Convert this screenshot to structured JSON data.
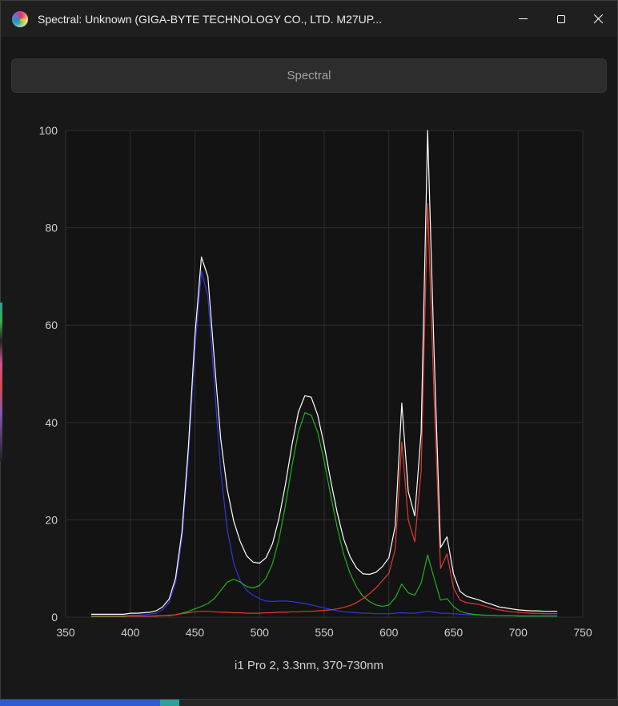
{
  "window": {
    "title": "Spectral: Unknown (GIGA-BYTE TECHNOLOGY CO., LTD. M27UP...",
    "controls": {
      "minimize": "minimize",
      "maximize": "maximize",
      "close": "close"
    }
  },
  "toolbar": {
    "spectral_label": "Spectral"
  },
  "caption": "i1 Pro 2, 3.3nm, 370-730nm",
  "colors": {
    "window_bg": "#181818",
    "titlebar_bg": "#1f1f1f",
    "plot_bg": "#131313",
    "grid": "#2f2f2f",
    "tick_text": "#cfcfcf",
    "white_series": "#ffffff",
    "red_series": "#e03c30",
    "green_series": "#1db31d",
    "blue_series": "#3434e0"
  },
  "chart_data": {
    "type": "line",
    "title": "Spectral",
    "xlabel": "",
    "ylabel": "",
    "xlim": [
      350,
      750
    ],
    "ylim": [
      0,
      100
    ],
    "x_ticks": [
      350,
      400,
      450,
      500,
      550,
      600,
      650,
      700,
      750
    ],
    "y_ticks": [
      0,
      20,
      40,
      60,
      80,
      100
    ],
    "grid": true,
    "legend": "none",
    "x": [
      370,
      375,
      380,
      385,
      390,
      395,
      400,
      405,
      410,
      415,
      420,
      425,
      430,
      435,
      440,
      445,
      450,
      455,
      460,
      465,
      470,
      475,
      480,
      485,
      490,
      495,
      500,
      505,
      510,
      515,
      520,
      525,
      530,
      535,
      540,
      545,
      550,
      555,
      560,
      565,
      570,
      575,
      580,
      585,
      590,
      595,
      600,
      605,
      610,
      615,
      620,
      625,
      630,
      635,
      640,
      645,
      650,
      655,
      660,
      665,
      670,
      675,
      680,
      685,
      690,
      695,
      700,
      705,
      710,
      715,
      720,
      725,
      730
    ],
    "series": [
      {
        "name": "white",
        "color": "#ffffff",
        "values": [
          0.6,
          0.6,
          0.6,
          0.6,
          0.6,
          0.6,
          0.8,
          0.8,
          0.9,
          1.0,
          1.3,
          2.1,
          3.7,
          8.0,
          17.5,
          35.1,
          57.8,
          74.0,
          70.0,
          52.9,
          36.5,
          26.2,
          19.7,
          15.6,
          12.6,
          11.3,
          11.1,
          12.2,
          15.1,
          20.3,
          27.3,
          35.3,
          42.1,
          45.5,
          45.2,
          41.5,
          35.3,
          28.1,
          21.5,
          16.1,
          12.4,
          10.1,
          8.9,
          8.8,
          9.2,
          10.4,
          12.2,
          18.8,
          44.0,
          25.8,
          20.8,
          38.0,
          100.0,
          54.0,
          14.3,
          16.5,
          8.9,
          5.3,
          4.3,
          3.9,
          3.5,
          3.0,
          2.6,
          2.1,
          1.9,
          1.7,
          1.5,
          1.4,
          1.3,
          1.3,
          1.2,
          1.2,
          1.2
        ]
      },
      {
        "name": "red",
        "color": "#e03c30",
        "values": [
          0.2,
          0.2,
          0.2,
          0.2,
          0.2,
          0.2,
          0.2,
          0.2,
          0.2,
          0.2,
          0.2,
          0.3,
          0.3,
          0.5,
          0.7,
          0.9,
          1.1,
          1.2,
          1.2,
          1.1,
          1.0,
          1.0,
          0.9,
          0.9,
          0.8,
          0.8,
          0.8,
          0.9,
          0.9,
          1.0,
          1.0,
          1.1,
          1.1,
          1.2,
          1.2,
          1.3,
          1.4,
          1.5,
          1.7,
          2.0,
          2.4,
          3.0,
          3.8,
          4.8,
          6.0,
          7.5,
          9.0,
          14.0,
          36.0,
          20.0,
          15.5,
          30.0,
          85.0,
          45.0,
          10.0,
          13.0,
          6.0,
          3.5,
          3.0,
          2.8,
          2.6,
          2.2,
          1.8,
          1.5,
          1.3,
          1.1,
          1.0,
          0.9,
          0.8,
          0.8,
          0.7,
          0.7,
          0.7
        ]
      },
      {
        "name": "green",
        "color": "#1db31d",
        "values": [
          0.1,
          0.1,
          0.1,
          0.1,
          0.1,
          0.1,
          0.2,
          0.2,
          0.2,
          0.2,
          0.3,
          0.3,
          0.4,
          0.5,
          0.8,
          1.2,
          1.7,
          2.2,
          2.8,
          3.8,
          5.5,
          7.2,
          7.8,
          7.2,
          6.3,
          6.0,
          6.5,
          8.0,
          11.0,
          16.0,
          23.0,
          31.0,
          38.0,
          42.0,
          41.5,
          38.0,
          32.0,
          25.0,
          18.5,
          13.0,
          9.0,
          6.2,
          4.3,
          3.2,
          2.5,
          2.2,
          2.5,
          4.0,
          6.8,
          5.0,
          4.5,
          7.0,
          12.8,
          8.0,
          3.5,
          3.8,
          2.2,
          1.2,
          0.8,
          0.6,
          0.5,
          0.4,
          0.4,
          0.3,
          0.3,
          0.3,
          0.2,
          0.2,
          0.2,
          0.2,
          0.2,
          0.2,
          0.2
        ]
      },
      {
        "name": "blue",
        "color": "#3434e0",
        "values": [
          0.3,
          0.3,
          0.3,
          0.3,
          0.3,
          0.3,
          0.4,
          0.4,
          0.5,
          0.6,
          0.8,
          1.5,
          3.0,
          7.0,
          16.0,
          33.0,
          55.0,
          71.0,
          66.0,
          48.0,
          30.0,
          18.0,
          11.0,
          7.5,
          5.5,
          4.5,
          3.8,
          3.3,
          3.2,
          3.3,
          3.3,
          3.2,
          3.0,
          2.8,
          2.5,
          2.2,
          1.9,
          1.6,
          1.3,
          1.1,
          1.0,
          0.9,
          0.8,
          0.8,
          0.7,
          0.7,
          0.7,
          0.8,
          0.9,
          0.8,
          0.8,
          1.0,
          1.2,
          1.0,
          0.8,
          0.8,
          0.7,
          0.6,
          0.5,
          0.5,
          0.4,
          0.4,
          0.4,
          0.3,
          0.3,
          0.3,
          0.3,
          0.3,
          0.3,
          0.3,
          0.3,
          0.3,
          0.3
        ]
      }
    ]
  }
}
